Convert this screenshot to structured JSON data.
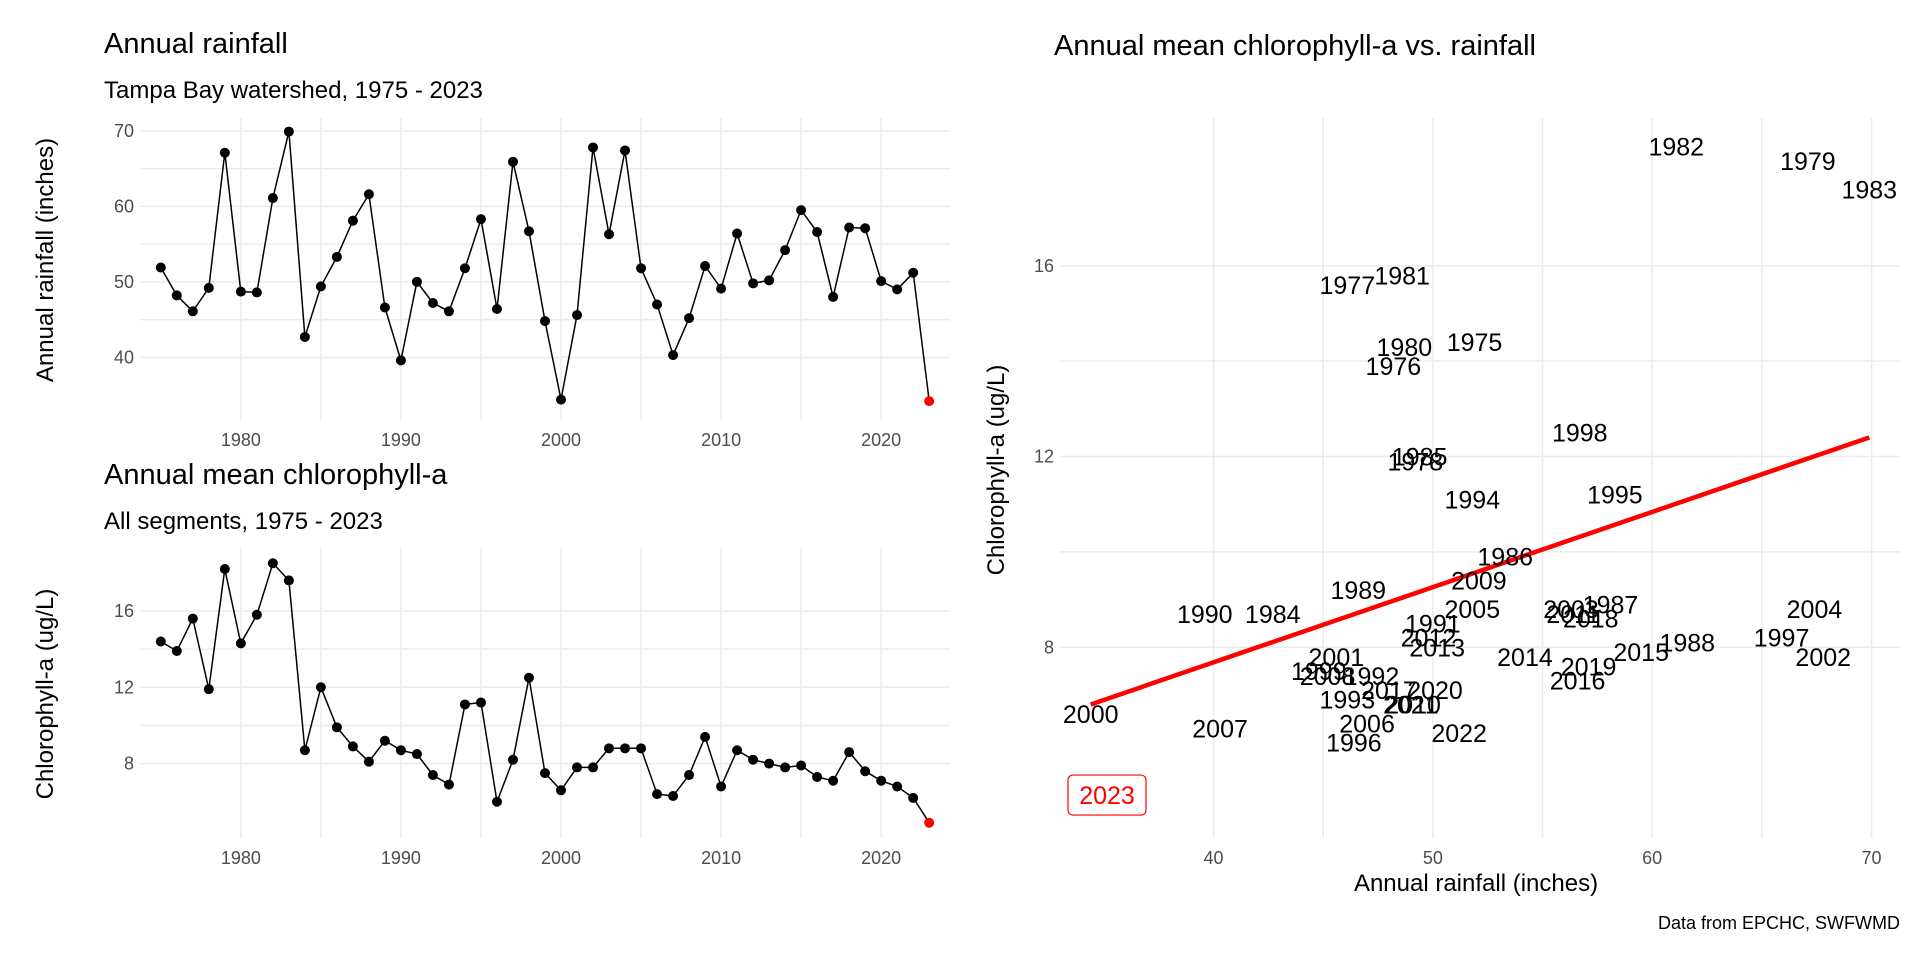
{
  "caption": "Data from EPCHC, SWFWMD",
  "chart_data": [
    {
      "type": "line",
      "title": "Annual rainfall",
      "subtitle": "Tampa Bay watershed, 1975 - 2023",
      "xlabel": "",
      "ylabel": "Annual rainfall (inches)",
      "xlim": [
        1973.7,
        2024.3
      ],
      "ylim": [
        31.7,
        71.7
      ],
      "x_ticks": [
        1980,
        1990,
        2000,
        2010,
        2020
      ],
      "y_ticks": [
        40,
        50,
        60,
        70
      ],
      "grid": true,
      "highlight": {
        "year": 2023,
        "color": "#ff0000"
      },
      "x": [
        1975,
        1976,
        1977,
        1978,
        1979,
        1980,
        1981,
        1982,
        1983,
        1984,
        1985,
        1986,
        1987,
        1988,
        1989,
        1990,
        1991,
        1992,
        1993,
        1994,
        1995,
        1996,
        1997,
        1998,
        1999,
        2000,
        2001,
        2002,
        2003,
        2004,
        2005,
        2006,
        2007,
        2008,
        2009,
        2010,
        2011,
        2012,
        2013,
        2014,
        2015,
        2016,
        2017,
        2018,
        2019,
        2020,
        2021,
        2022,
        2023
      ],
      "values": [
        51.9,
        48.2,
        46.1,
        49.2,
        67.1,
        48.7,
        48.6,
        61.1,
        69.9,
        42.7,
        49.4,
        53.3,
        58.1,
        61.6,
        46.6,
        39.6,
        50.0,
        47.2,
        46.1,
        51.8,
        58.3,
        46.4,
        65.9,
        56.7,
        44.8,
        34.4,
        45.6,
        67.8,
        56.3,
        67.4,
        51.8,
        47.0,
        40.3,
        45.2,
        52.1,
        49.1,
        56.4,
        49.8,
        50.2,
        54.2,
        59.5,
        56.6,
        48.0,
        57.2,
        57.1,
        50.1,
        49.0,
        51.2,
        34.2
      ]
    },
    {
      "type": "line",
      "title": "Annual mean chlorophyll-a",
      "subtitle": "All segments, 1975 - 2023",
      "xlabel": "",
      "ylabel": "Chlorophyll-a (ug/L)",
      "xlim": [
        1973.7,
        2024.3
      ],
      "ylim": [
        4.1,
        19.3
      ],
      "x_ticks": [
        1980,
        1990,
        2000,
        2010,
        2020
      ],
      "y_ticks": [
        8,
        12,
        16
      ],
      "grid": true,
      "highlight": {
        "year": 2023,
        "color": "#ff0000"
      },
      "x": [
        1975,
        1976,
        1977,
        1978,
        1979,
        1980,
        1981,
        1982,
        1983,
        1984,
        1985,
        1986,
        1987,
        1988,
        1989,
        1990,
        1991,
        1992,
        1993,
        1994,
        1995,
        1996,
        1997,
        1998,
        1999,
        2000,
        2001,
        2002,
        2003,
        2004,
        2005,
        2006,
        2007,
        2008,
        2009,
        2010,
        2011,
        2012,
        2013,
        2014,
        2015,
        2016,
        2017,
        2018,
        2019,
        2020,
        2021,
        2022,
        2023
      ],
      "values": [
        14.4,
        13.9,
        15.6,
        11.9,
        18.2,
        14.3,
        15.8,
        18.5,
        17.6,
        8.7,
        12.0,
        9.9,
        8.9,
        8.1,
        9.2,
        8.7,
        8.5,
        7.4,
        6.9,
        11.1,
        11.2,
        6.0,
        8.2,
        12.5,
        7.5,
        6.6,
        7.8,
        7.8,
        8.8,
        8.8,
        8.8,
        6.4,
        6.3,
        7.4,
        9.4,
        6.8,
        8.7,
        8.2,
        8.0,
        7.8,
        7.9,
        7.3,
        7.1,
        8.6,
        7.6,
        7.1,
        6.8,
        6.2,
        4.9
      ]
    },
    {
      "type": "scatter",
      "title": "Annual mean chlorophyll-a vs. rainfall",
      "xlabel": "Annual rainfall (inches)",
      "ylabel": "Chlorophyll-a (ug/L)",
      "xlim": [
        33.0,
        71.3
      ],
      "ylim": [
        4.0,
        19.1
      ],
      "x_ticks": [
        40,
        50,
        60,
        70
      ],
      "y_ticks": [
        8,
        12,
        16
      ],
      "grid": true,
      "trend_line": {
        "color": "#ff0000",
        "x": [
          34.4,
          69.9
        ],
        "y": [
          6.8,
          12.4
        ]
      },
      "highlight": {
        "label": "2023",
        "color": "#ff0000"
      },
      "points": [
        {
          "label": "1975",
          "x": 51.9,
          "y": 14.4
        },
        {
          "label": "1976",
          "x": 48.2,
          "y": 13.9
        },
        {
          "label": "1977",
          "x": 46.1,
          "y": 15.6
        },
        {
          "label": "1978",
          "x": 49.2,
          "y": 11.9
        },
        {
          "label": "1979",
          "x": 67.1,
          "y": 18.2
        },
        {
          "label": "1980",
          "x": 48.7,
          "y": 14.3
        },
        {
          "label": "1981",
          "x": 48.6,
          "y": 15.8
        },
        {
          "label": "1982",
          "x": 61.1,
          "y": 18.5
        },
        {
          "label": "1983",
          "x": 69.9,
          "y": 17.6
        },
        {
          "label": "1984",
          "x": 42.7,
          "y": 8.7
        },
        {
          "label": "1985",
          "x": 49.4,
          "y": 12.0
        },
        {
          "label": "1986",
          "x": 53.3,
          "y": 9.9
        },
        {
          "label": "1987",
          "x": 58.1,
          "y": 8.9
        },
        {
          "label": "1988",
          "x": 61.6,
          "y": 8.1
        },
        {
          "label": "1989",
          "x": 46.6,
          "y": 9.2
        },
        {
          "label": "1990",
          "x": 39.6,
          "y": 8.7
        },
        {
          "label": "1991",
          "x": 50.0,
          "y": 8.5
        },
        {
          "label": "1992",
          "x": 47.2,
          "y": 7.4
        },
        {
          "label": "1993",
          "x": 46.1,
          "y": 6.9
        },
        {
          "label": "1994",
          "x": 51.8,
          "y": 11.1
        },
        {
          "label": "1995",
          "x": 58.3,
          "y": 11.2
        },
        {
          "label": "1996",
          "x": 46.4,
          "y": 6.0
        },
        {
          "label": "1997",
          "x": 65.9,
          "y": 8.2
        },
        {
          "label": "1998",
          "x": 56.7,
          "y": 12.5
        },
        {
          "label": "1999",
          "x": 44.8,
          "y": 7.5
        },
        {
          "label": "2000",
          "x": 34.4,
          "y": 6.6
        },
        {
          "label": "2001",
          "x": 45.6,
          "y": 7.8
        },
        {
          "label": "2002",
          "x": 67.8,
          "y": 7.8
        },
        {
          "label": "2003",
          "x": 56.3,
          "y": 8.8
        },
        {
          "label": "2004",
          "x": 67.4,
          "y": 8.8
        },
        {
          "label": "2005",
          "x": 51.8,
          "y": 8.8
        },
        {
          "label": "2006",
          "x": 47.0,
          "y": 6.4
        },
        {
          "label": "2007",
          "x": 40.3,
          "y": 6.3
        },
        {
          "label": "2008",
          "x": 45.2,
          "y": 7.4
        },
        {
          "label": "2009",
          "x": 52.1,
          "y": 9.4
        },
        {
          "label": "2010",
          "x": 49.1,
          "y": 6.8
        },
        {
          "label": "2011",
          "x": 56.4,
          "y": 8.7
        },
        {
          "label": "2012",
          "x": 49.8,
          "y": 8.2
        },
        {
          "label": "2013",
          "x": 50.2,
          "y": 8.0
        },
        {
          "label": "2014",
          "x": 54.2,
          "y": 7.8
        },
        {
          "label": "2015",
          "x": 59.5,
          "y": 7.9
        },
        {
          "label": "2016",
          "x": 56.6,
          "y": 7.3
        },
        {
          "label": "2017",
          "x": 48.0,
          "y": 7.1
        },
        {
          "label": "2018",
          "x": 57.2,
          "y": 8.6
        },
        {
          "label": "2019",
          "x": 57.1,
          "y": 7.6
        },
        {
          "label": "2020",
          "x": 50.1,
          "y": 7.1
        },
        {
          "label": "2021",
          "x": 49.0,
          "y": 6.8
        },
        {
          "label": "2022",
          "x": 51.2,
          "y": 6.2
        },
        {
          "label": "2023",
          "x": 34.2,
          "y": 4.9
        }
      ]
    }
  ]
}
